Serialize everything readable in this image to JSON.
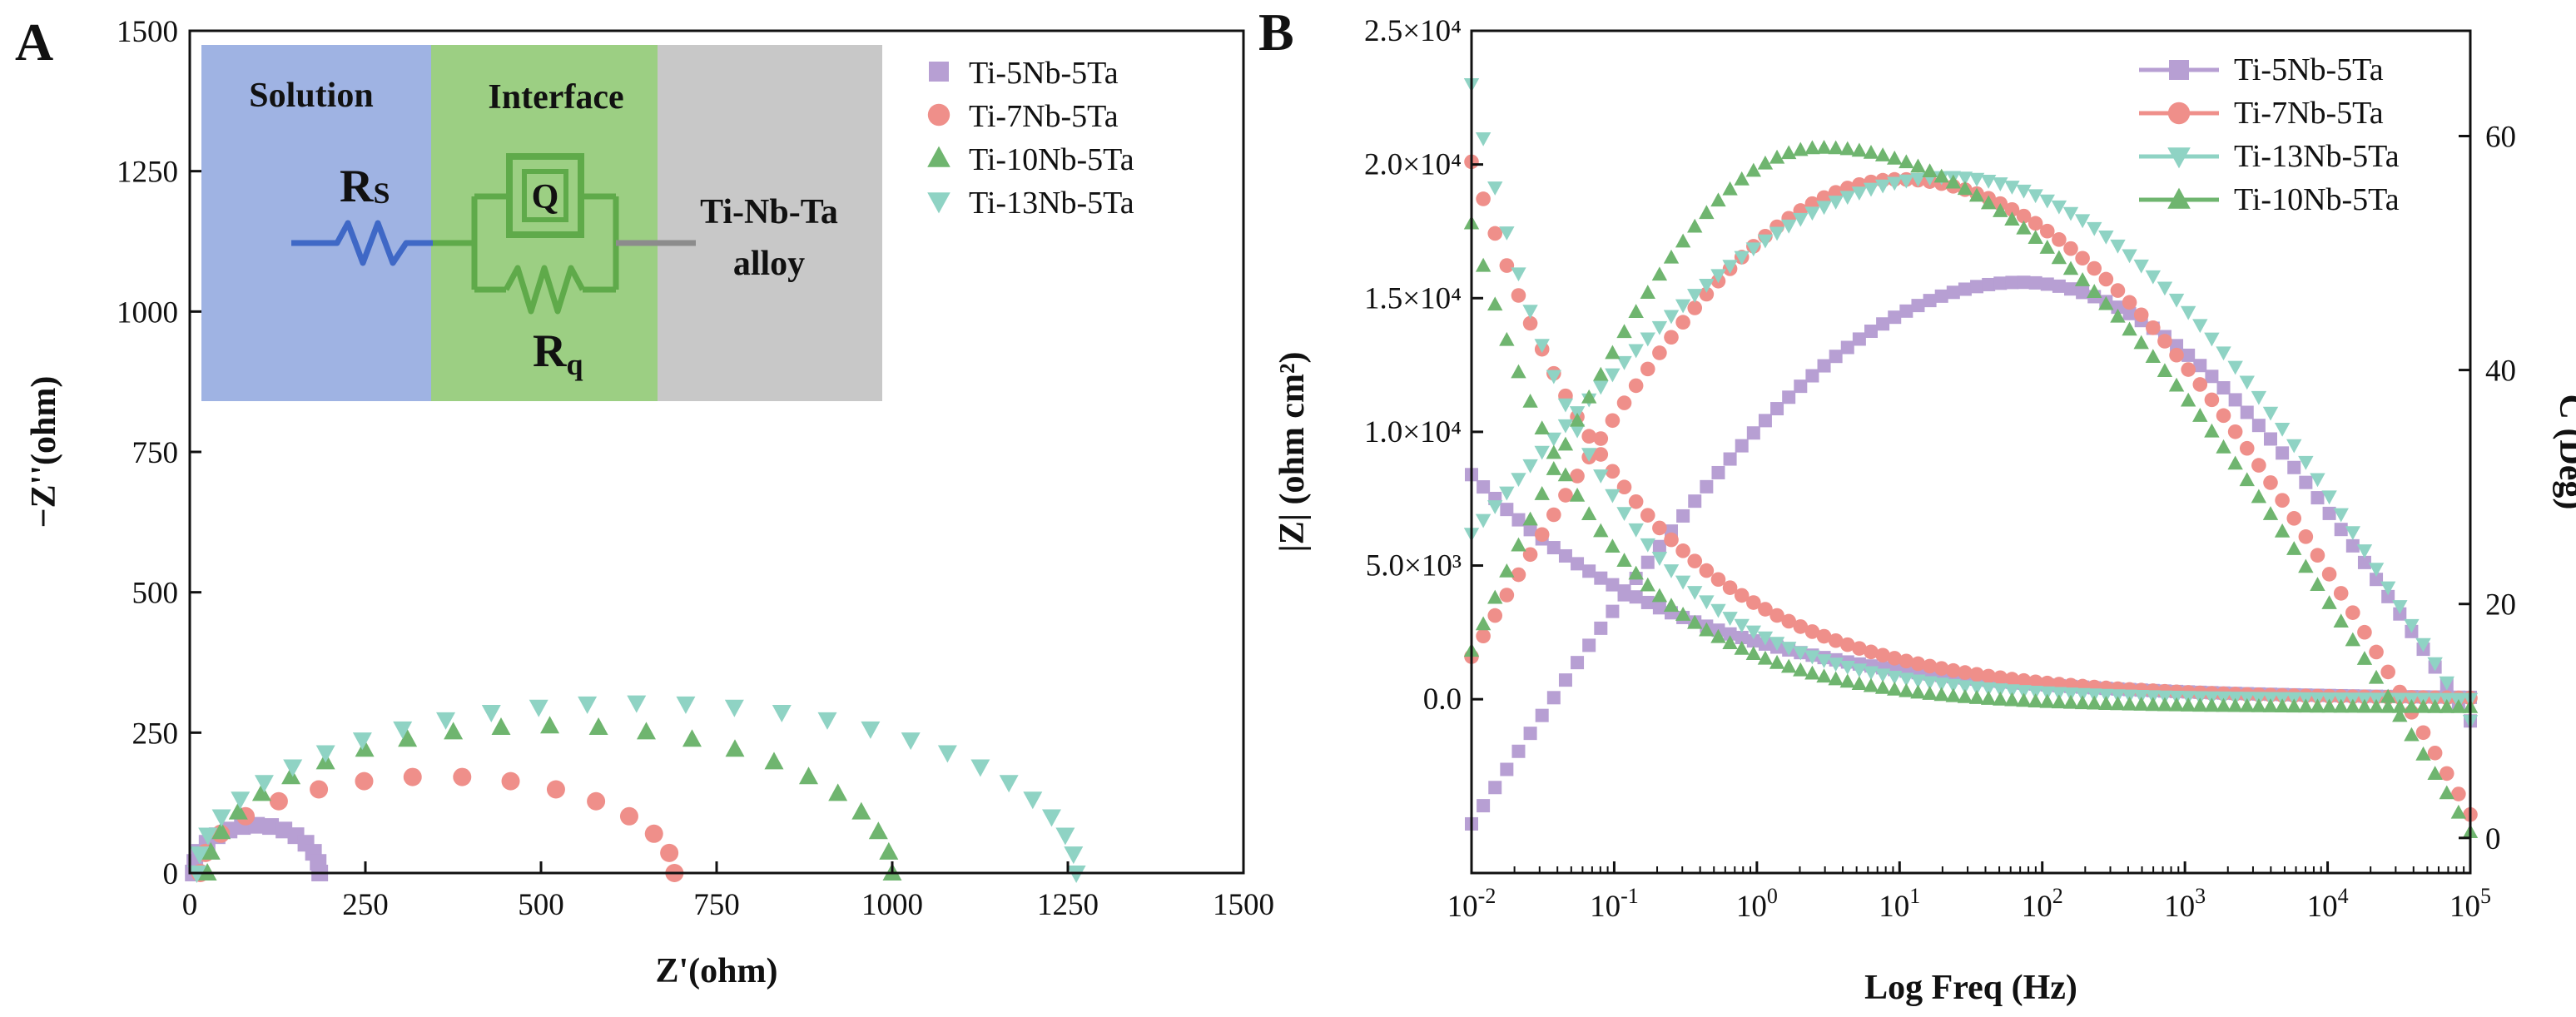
{
  "chart_data": [
    {
      "panel": "A",
      "type": "scatter",
      "title": "",
      "xlabel": "Z'(ohm)",
      "ylabel": "−Z''(ohm)",
      "xlim": [
        0,
        1500
      ],
      "ylim": [
        0,
        1500
      ],
      "xticks": [
        0,
        250,
        500,
        750,
        1000,
        1250,
        1500
      ],
      "yticks": [
        0,
        250,
        500,
        750,
        1000,
        1250,
        1500
      ],
      "legend_position": "top-right",
      "series": [
        {
          "name": "Ti-5Nb-5Ta",
          "marker": "square",
          "color": "#b79fd3",
          "semicircle": {
            "start": 5,
            "end": 185,
            "peak": 85
          }
        },
        {
          "name": "Ti-7Nb-5Ta",
          "marker": "circle",
          "color": "#ef8f8a",
          "semicircle": {
            "start": 15,
            "end": 690,
            "peak": 172
          }
        },
        {
          "name": "Ti-10Nb-5Ta",
          "marker": "triangle-up",
          "color": "#6fb56f",
          "semicircle": {
            "start": 25,
            "end": 1000,
            "peak": 262
          }
        },
        {
          "name": "Ti-13Nb-5Ta",
          "marker": "triangle-down",
          "color": "#8fd3c4",
          "semicircle": {
            "start": 10,
            "end": 1262,
            "peak": 303
          }
        }
      ],
      "inset": {
        "regions": [
          {
            "label": "Solution",
            "color": "#9fb3e3"
          },
          {
            "label": "Interface",
            "color": "#9ccf83"
          },
          {
            "label": "Ti-Nb-Ta",
            "label2": "alloy",
            "color": "#c8c8c8"
          }
        ],
        "rs_main": "R",
        "rs_sub": "S",
        "q_label": "Q",
        "rq_main": "R",
        "rq_sub": "q"
      }
    },
    {
      "panel": "B",
      "type": "line",
      "title": "",
      "xlabel": "Log Freq (Hz)",
      "ylabel": "|Z| (ohm cm²)",
      "ylabel2": "C (Deg)",
      "x_scale": "log",
      "xlim_exp": [
        -2,
        5
      ],
      "ylim": [
        -6500,
        25000
      ],
      "y2lim": [
        -3,
        69
      ],
      "xtick_exponents": [
        "-2",
        "-1",
        "0",
        "1",
        "2",
        "3",
        "4",
        "5"
      ],
      "yticks": [
        {
          "value": 0,
          "label": "0.0"
        },
        {
          "value": 5000,
          "label": "5.0×10³"
        },
        {
          "value": 10000,
          "label": "1.0×10⁴"
        },
        {
          "value": 15000,
          "label": "1.5×10⁴"
        },
        {
          "value": 20000,
          "label": "2.0×10⁴"
        },
        {
          "value": 25000,
          "label": "2.5×10⁴"
        }
      ],
      "y2ticks": [
        0,
        20,
        40,
        60
      ],
      "legend_position": "top-right",
      "series": [
        {
          "name": "Ti-5Nb-5Ta",
          "marker": "square",
          "color": "#b79fd3",
          "impedance": {
            "low_freq_value": 8400,
            "decay_per_decade": 0.11,
            "high_freq_value": 0
          },
          "phase": {
            "start": 1.2,
            "peak": 47.5,
            "peak_log_freq": 1.85,
            "end": 10
          }
        },
        {
          "name": "Ti-7Nb-5Ta",
          "marker": "circle",
          "color": "#ef8f8a",
          "impedance": {
            "low_freq_value": 20100,
            "decay_per_decade": 0.14,
            "high_freq_value": 0
          },
          "phase": {
            "start": 15.5,
            "peak": 56.3,
            "peak_log_freq": 1.0,
            "end": 2
          }
        },
        {
          "name": "Ti-13Nb-5Ta",
          "marker": "triangle-down",
          "color": "#8fd3c4",
          "impedance": {
            "low_freq_value": 23000,
            "decay_per_decade": 0.18,
            "high_freq_value": 0
          },
          "phase": {
            "start": 26.0,
            "peak": 56.5,
            "peak_log_freq": 1.35,
            "end": 10
          }
        },
        {
          "name": "Ti-10Nb-5Ta",
          "marker": "triangle-up",
          "color": "#6fb56f",
          "impedance": {
            "low_freq_value": 17800,
            "decay_per_decade": 0.18,
            "high_freq_value": -300
          },
          "phase": {
            "start": 16.0,
            "peak": 59.0,
            "peak_log_freq": 0.45,
            "end": 0.5
          }
        }
      ]
    }
  ],
  "labels": {
    "panel_a": "A",
    "panel_b": "B",
    "ten": "10"
  }
}
